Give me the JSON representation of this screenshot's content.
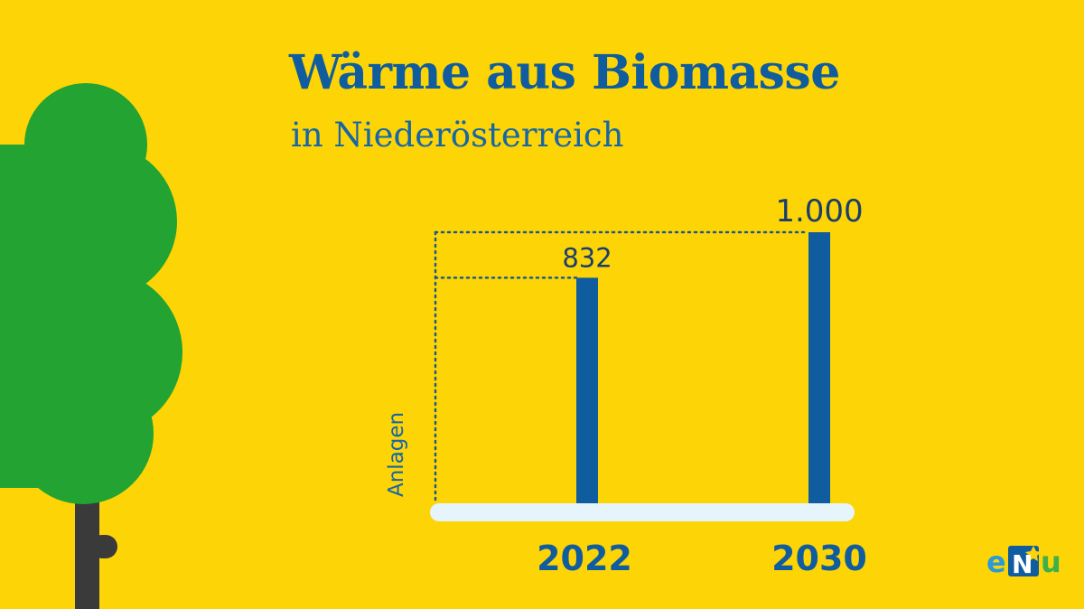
{
  "header": {
    "title": "Wärme aus Biomasse",
    "subtitle": "in Niederösterreich"
  },
  "logo": {
    "text_e": "e",
    "text_n": "N",
    "text_u": "u",
    "icon": "enu-logo-icon"
  },
  "decoration": {
    "icon": "tree-icon",
    "canopy_color": "#22A332",
    "trunk_color": "#3A3A3A"
  },
  "colors": {
    "background": "#FDD406",
    "bar": "#0F5C9E",
    "baseline": "#E6F4FB",
    "text": "#0F5C9E"
  },
  "chart_data": {
    "type": "bar",
    "categories": [
      "2022",
      "2030"
    ],
    "values": [
      832,
      1000
    ],
    "value_labels": [
      "832",
      "1.000"
    ],
    "title": "Wärme aus Biomasse",
    "subtitle": "in Niederösterreich",
    "xlabel": "",
    "ylabel": "Anlagen",
    "ylim": [
      0,
      1000
    ],
    "grid": false,
    "guide_lines": "dotted"
  }
}
